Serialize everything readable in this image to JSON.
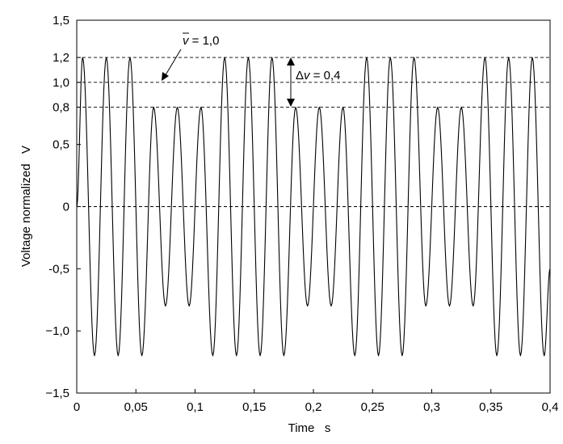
{
  "chart_data": {
    "type": "line",
    "title": "",
    "xlabel": "Time   s",
    "ylabel": "Voltage normalized   V",
    "xlim": [
      0,
      0.4
    ],
    "ylim": [
      -1.5,
      1.5
    ],
    "grid": false,
    "x_ticks": [
      {
        "value": 0,
        "label": "0"
      },
      {
        "value": 0.05,
        "label": "0,05"
      },
      {
        "value": 0.1,
        "label": "0,1"
      },
      {
        "value": 0.15,
        "label": "0,15"
      },
      {
        "value": 0.2,
        "label": "0,2"
      },
      {
        "value": 0.25,
        "label": "0,25"
      },
      {
        "value": 0.3,
        "label": "0,3"
      },
      {
        "value": 0.35,
        "label": "0,35"
      },
      {
        "value": 0.4,
        "label": "0,4"
      }
    ],
    "y_ticks": [
      {
        "value": 1.5,
        "label": "1,5"
      },
      {
        "value": 1.2,
        "label": "1,2"
      },
      {
        "value": 1.0,
        "label": "1,0"
      },
      {
        "value": 0.8,
        "label": "0,8"
      },
      {
        "value": 0.5,
        "label": "0,5"
      },
      {
        "value": 0,
        "label": "0"
      },
      {
        "value": -0.5,
        "label": "-0,5"
      },
      {
        "value": -1.0,
        "label": "−1,0"
      },
      {
        "value": -1.5,
        "label": "−1,5"
      }
    ],
    "reference_lines": [
      {
        "y": 1.2,
        "style": "dashed"
      },
      {
        "y": 1.0,
        "style": "dashed"
      },
      {
        "y": 0.8,
        "style": "dashed"
      },
      {
        "y": 0,
        "style": "dashed"
      }
    ],
    "annotations": {
      "mean": {
        "symbol": "v",
        "rest": " = 1,0"
      },
      "delta": {
        "prefix": "Δ",
        "symbol": "v",
        "rest": " = 0,4"
      }
    },
    "series": [
      {
        "carrier_frequency_hz": 50,
        "mean_amplitude": 1.0,
        "amplitude_deviation": 0.2,
        "points": [
          [
            0,
            0
          ],
          [
            0.005,
            1.2
          ],
          [
            0.015,
            -1.2
          ],
          [
            0.025,
            1.2
          ],
          [
            0.035,
            -1.2
          ],
          [
            0.045,
            1.2
          ],
          [
            0.055,
            -1.2
          ],
          [
            0.065,
            0.8
          ],
          [
            0.075,
            -0.8
          ],
          [
            0.085,
            0.8
          ],
          [
            0.095,
            -0.8
          ],
          [
            0.105,
            0.8
          ],
          [
            0.115,
            -1.2
          ],
          [
            0.125,
            1.2
          ],
          [
            0.135,
            -1.2
          ],
          [
            0.145,
            1.2
          ],
          [
            0.155,
            -1.2
          ],
          [
            0.165,
            1.2
          ],
          [
            0.175,
            -1.2
          ],
          [
            0.185,
            0.8
          ],
          [
            0.195,
            -0.8
          ],
          [
            0.205,
            0.8
          ],
          [
            0.215,
            -0.8
          ],
          [
            0.225,
            0.8
          ],
          [
            0.235,
            -1.2
          ],
          [
            0.245,
            1.2
          ],
          [
            0.255,
            -1.2
          ],
          [
            0.265,
            1.2
          ],
          [
            0.275,
            -1.2
          ],
          [
            0.285,
            1.2
          ],
          [
            0.295,
            -0.8
          ],
          [
            0.305,
            0.8
          ],
          [
            0.315,
            -0.8
          ],
          [
            0.325,
            0.8
          ],
          [
            0.335,
            -0.8
          ],
          [
            0.345,
            1.2
          ],
          [
            0.355,
            -1.2
          ],
          [
            0.365,
            1.2
          ],
          [
            0.375,
            -1.2
          ],
          [
            0.385,
            1.2
          ],
          [
            0.395,
            -1.2
          ],
          [
            0.4,
            -0.5
          ]
        ]
      }
    ]
  }
}
